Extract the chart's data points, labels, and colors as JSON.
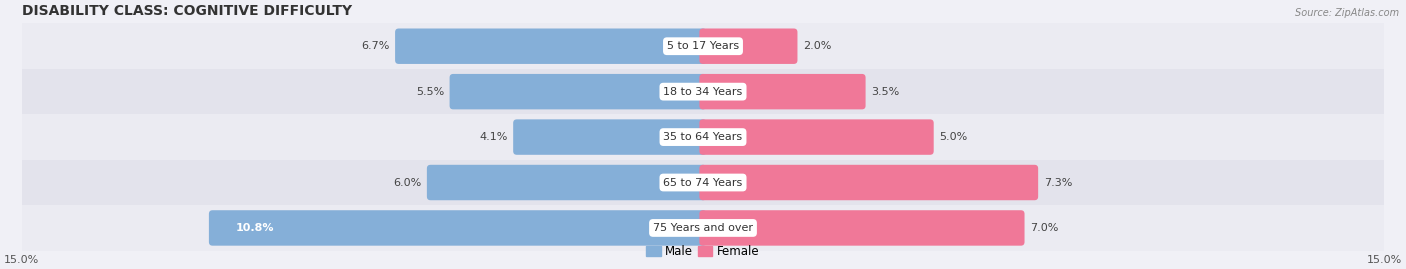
{
  "title": "DISABILITY CLASS: COGNITIVE DIFFICULTY",
  "source": "Source: ZipAtlas.com",
  "categories": [
    "5 to 17 Years",
    "18 to 34 Years",
    "35 to 64 Years",
    "65 to 74 Years",
    "75 Years and over"
  ],
  "male_values": [
    6.7,
    5.5,
    4.1,
    6.0,
    10.8
  ],
  "female_values": [
    2.0,
    3.5,
    5.0,
    7.3,
    7.0
  ],
  "male_color": "#85afd8",
  "female_color": "#f07898",
  "row_bg_colors": [
    "#eeeef4",
    "#e6e6ee"
  ],
  "max_val": 15.0,
  "title_fontsize": 10,
  "label_fontsize": 8,
  "value_fontsize": 8,
  "tick_fontsize": 8,
  "legend_fontsize": 8.5
}
